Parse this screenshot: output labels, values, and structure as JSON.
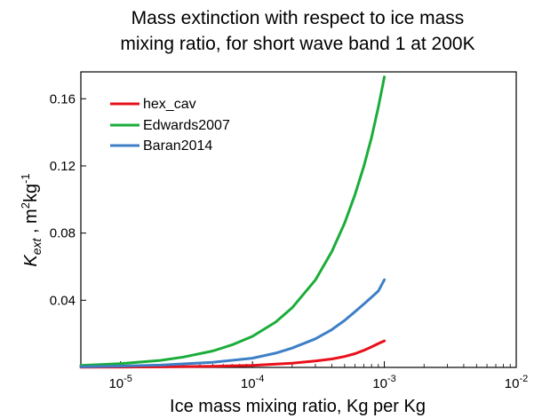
{
  "chart_data": {
    "type": "line",
    "title_lines": [
      "Mass extinction with respect to ice mass",
      "mixing ratio, for short wave band 1 at 200K"
    ],
    "xlabel": "Ice mass mixing ratio, Kg per Kg",
    "ylabel": {
      "symbol": "K",
      "subscript": "ext",
      "sep": " , ",
      "unit_m": "m",
      "unit_m_exp": "2",
      "unit_kg": "kg",
      "unit_kg_exp": "-1"
    },
    "x_scale": "log",
    "xlim": [
      5e-06,
      0.01
    ],
    "ylim": [
      0,
      0.176
    ],
    "x_ticks": [
      {
        "value": 1e-05,
        "base": "10",
        "exp": "-5"
      },
      {
        "value": 0.0001,
        "base": "10",
        "exp": "-4"
      },
      {
        "value": 0.001,
        "base": "10",
        "exp": "-3"
      },
      {
        "value": 0.01,
        "base": "10",
        "exp": "-2"
      }
    ],
    "y_ticks": [
      {
        "value": 0.04,
        "label": "0.04"
      },
      {
        "value": 0.08,
        "label": "0.08"
      },
      {
        "value": 0.12,
        "label": "0.12"
      },
      {
        "value": 0.16,
        "label": "0.16"
      }
    ],
    "grid": false,
    "legend_position": "top-left",
    "series": [
      {
        "name": "hex_cav",
        "color": "#e8101a",
        "x": [
          5e-06,
          1e-05,
          2e-05,
          5e-05,
          0.0001,
          0.0002,
          0.0003,
          0.0004,
          0.0005,
          0.0006,
          0.0007,
          0.0008,
          0.0009,
          0.001
        ],
        "y": [
          0.0001,
          0.0002,
          0.0003,
          0.0007,
          0.0012,
          0.0025,
          0.0038,
          0.005,
          0.0065,
          0.0082,
          0.0102,
          0.0122,
          0.0142,
          0.0158
        ]
      },
      {
        "name": "Edwards2007",
        "color": "#1aad3a",
        "x": [
          5e-06,
          1e-05,
          2e-05,
          3e-05,
          5e-05,
          7e-05,
          0.0001,
          0.00015,
          0.0002,
          0.0003,
          0.0004,
          0.0005,
          0.0006,
          0.0007,
          0.0008,
          0.0009,
          0.001
        ],
        "y": [
          0.0012,
          0.0022,
          0.0042,
          0.0062,
          0.0098,
          0.0134,
          0.0185,
          0.027,
          0.0355,
          0.052,
          0.069,
          0.086,
          0.103,
          0.12,
          0.137,
          0.155,
          0.173
        ]
      },
      {
        "name": "Baran2014",
        "color": "#3d7fc6",
        "x": [
          5e-06,
          1e-05,
          2e-05,
          5e-05,
          0.0001,
          0.00015,
          0.0002,
          0.0003,
          0.0004,
          0.0005,
          0.0006,
          0.0007,
          0.0008,
          0.0009,
          0.001
        ],
        "y": [
          0.0004,
          0.0008,
          0.0014,
          0.003,
          0.0055,
          0.0085,
          0.0115,
          0.017,
          0.0225,
          0.028,
          0.0332,
          0.0378,
          0.0418,
          0.0455,
          0.0522
        ]
      }
    ]
  }
}
